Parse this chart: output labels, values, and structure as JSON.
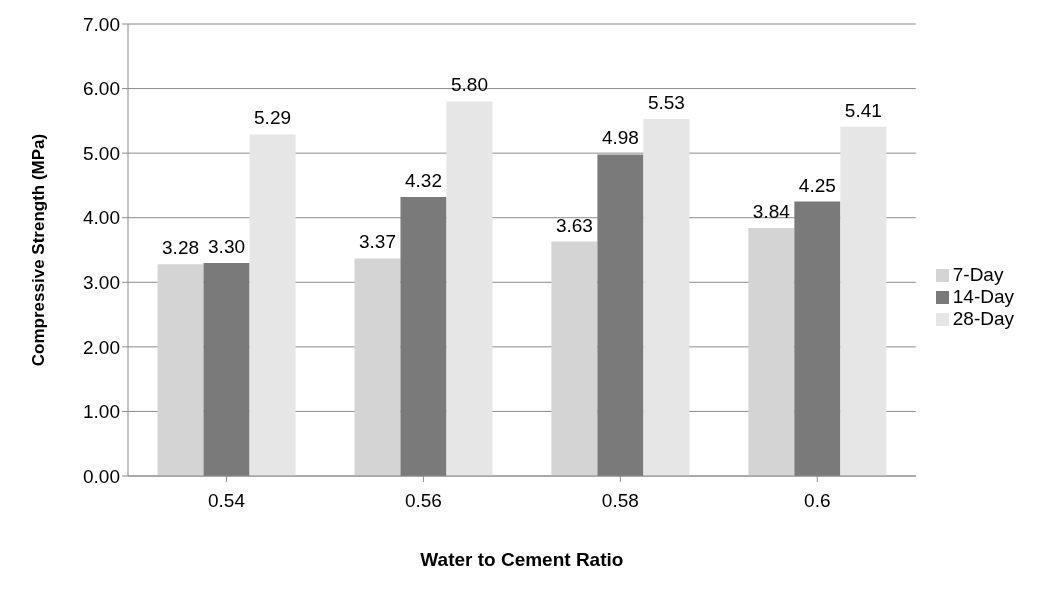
{
  "chart_data": {
    "type": "bar",
    "xlabel": "Water to Cement Ratio",
    "ylabel": "Compressive Strength (MPa)",
    "categories": [
      "0.54",
      "0.56",
      "0.58",
      "0.6"
    ],
    "series": [
      {
        "name": "7-Day",
        "color": "#d4d4d4",
        "values": [
          3.28,
          3.37,
          3.63,
          3.84
        ],
        "value_labels": [
          "3.28",
          "3.37",
          "3.63",
          "3.84"
        ]
      },
      {
        "name": "14-Day",
        "color": "#7a7a7a",
        "values": [
          3.3,
          4.32,
          4.98,
          4.25
        ],
        "value_labels": [
          "3.30",
          "4.32",
          "4.98",
          "4.25"
        ]
      },
      {
        "name": "28-Day",
        "color": "#e6e6e6",
        "values": [
          5.29,
          5.8,
          5.53,
          5.41
        ],
        "value_labels": [
          "5.29",
          "5.80",
          "5.53",
          "5.41"
        ]
      }
    ],
    "ylim": [
      0,
      7
    ],
    "yticks": [
      {
        "value": 0,
        "label": "0.00"
      },
      {
        "value": 1,
        "label": "1.00"
      },
      {
        "value": 2,
        "label": "2.00"
      },
      {
        "value": 3,
        "label": "3.00"
      },
      {
        "value": 4,
        "label": "4.00"
      },
      {
        "value": 5,
        "label": "5.00"
      },
      {
        "value": 6,
        "label": "6.00"
      },
      {
        "value": 7,
        "label": "7.00"
      }
    ],
    "grid": "y",
    "legend": "right"
  }
}
